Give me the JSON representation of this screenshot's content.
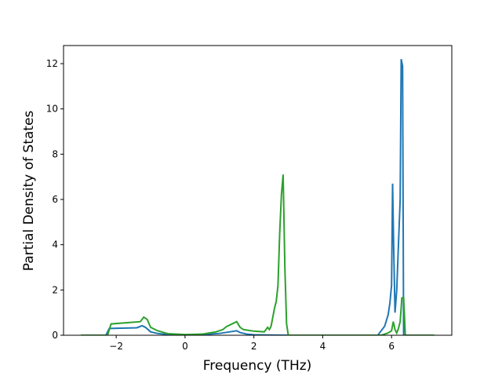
{
  "chart_data": {
    "type": "line",
    "x_label": "Frequency (THz)",
    "y_label": "Partial Density of States",
    "xlim": [
      -3.53,
      7.75
    ],
    "ylim": [
      0,
      12.8
    ],
    "xticks": [
      {
        "value": -2,
        "label": "−2"
      },
      0,
      2,
      4,
      6
    ],
    "yticks": [
      0,
      2,
      4,
      6,
      8,
      10,
      12
    ],
    "series": [
      {
        "color": "#1f77b4",
        "x": [
          -3.02,
          -2.3,
          -2.2,
          -1.4,
          -1.25,
          -1.15,
          -1.0,
          -0.8,
          -0.5,
          0,
          0.5,
          1.0,
          1.3,
          1.5,
          1.6,
          1.8,
          2.0,
          2.5,
          3.0,
          5.6,
          5.8,
          5.9,
          5.95,
          6.0,
          6.03,
          6.06,
          6.1,
          6.15,
          6.2,
          6.25,
          6.28,
          6.32,
          6.35,
          7.24
        ],
        "values": [
          0,
          0,
          0.3,
          0.33,
          0.42,
          0.35,
          0.15,
          0.08,
          0.03,
          0.02,
          0.03,
          0.08,
          0.15,
          0.2,
          0.12,
          0.05,
          0.02,
          0.01,
          0,
          0,
          0.4,
          0.9,
          1.4,
          2.2,
          6.7,
          4.0,
          1.0,
          2.0,
          4.0,
          6.0,
          12.2,
          11.9,
          0,
          0
        ]
      },
      {
        "color": "#2ca02c",
        "x": [
          -3.02,
          -2.25,
          -2.15,
          -1.3,
          -1.2,
          -1.1,
          -1.0,
          -0.8,
          -0.5,
          0,
          0.5,
          0.9,
          1.1,
          1.2,
          1.5,
          1.6,
          1.7,
          2.0,
          2.3,
          2.4,
          2.45,
          2.5,
          2.55,
          2.6,
          2.65,
          2.7,
          2.75,
          2.8,
          2.85,
          2.9,
          2.95,
          3.0,
          5.7,
          5.9,
          6.0,
          6.05,
          6.1,
          6.15,
          6.2,
          6.25,
          6.3,
          6.35,
          6.4,
          7.24
        ],
        "values": [
          0,
          0,
          0.5,
          0.6,
          0.8,
          0.7,
          0.35,
          0.2,
          0.07,
          0.03,
          0.05,
          0.15,
          0.25,
          0.38,
          0.6,
          0.35,
          0.25,
          0.18,
          0.15,
          0.35,
          0.25,
          0.4,
          0.8,
          1.2,
          1.5,
          2.2,
          4.5,
          6.2,
          7.1,
          3.0,
          0.5,
          0,
          0,
          0.1,
          0.2,
          0.6,
          0.25,
          0.1,
          0.3,
          0.6,
          1.65,
          1.65,
          0,
          0
        ]
      }
    ]
  }
}
